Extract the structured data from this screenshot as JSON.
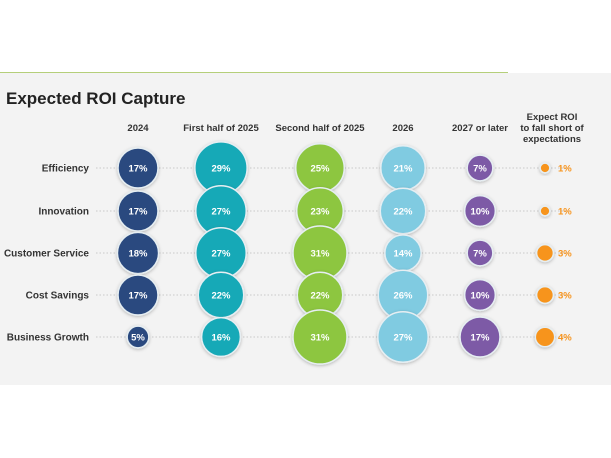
{
  "chart_data": {
    "type": "bubble-grid",
    "title": "Expected ROI Capture",
    "columns": [
      "2024",
      "First half of 2025",
      "Second half of 2025",
      "2026",
      "2027 or later",
      "Expect ROI to fall short of expectations"
    ],
    "rows": [
      "Efficiency",
      "Innovation",
      "Customer Service",
      "Cost Savings",
      "Business Growth"
    ],
    "unit": "%",
    "values": [
      [
        17,
        29,
        25,
        21,
        7,
        1
      ],
      [
        17,
        27,
        23,
        22,
        10,
        1
      ],
      [
        18,
        27,
        31,
        14,
        7,
        3
      ],
      [
        17,
        22,
        22,
        26,
        10,
        3
      ],
      [
        5,
        16,
        31,
        27,
        17,
        4
      ]
    ],
    "colors": [
      "#2a4a7f",
      "#12a9b7",
      "#8dc63f",
      "#80cbe1",
      "#7d5aa6",
      "#f7941d"
    ]
  }
}
